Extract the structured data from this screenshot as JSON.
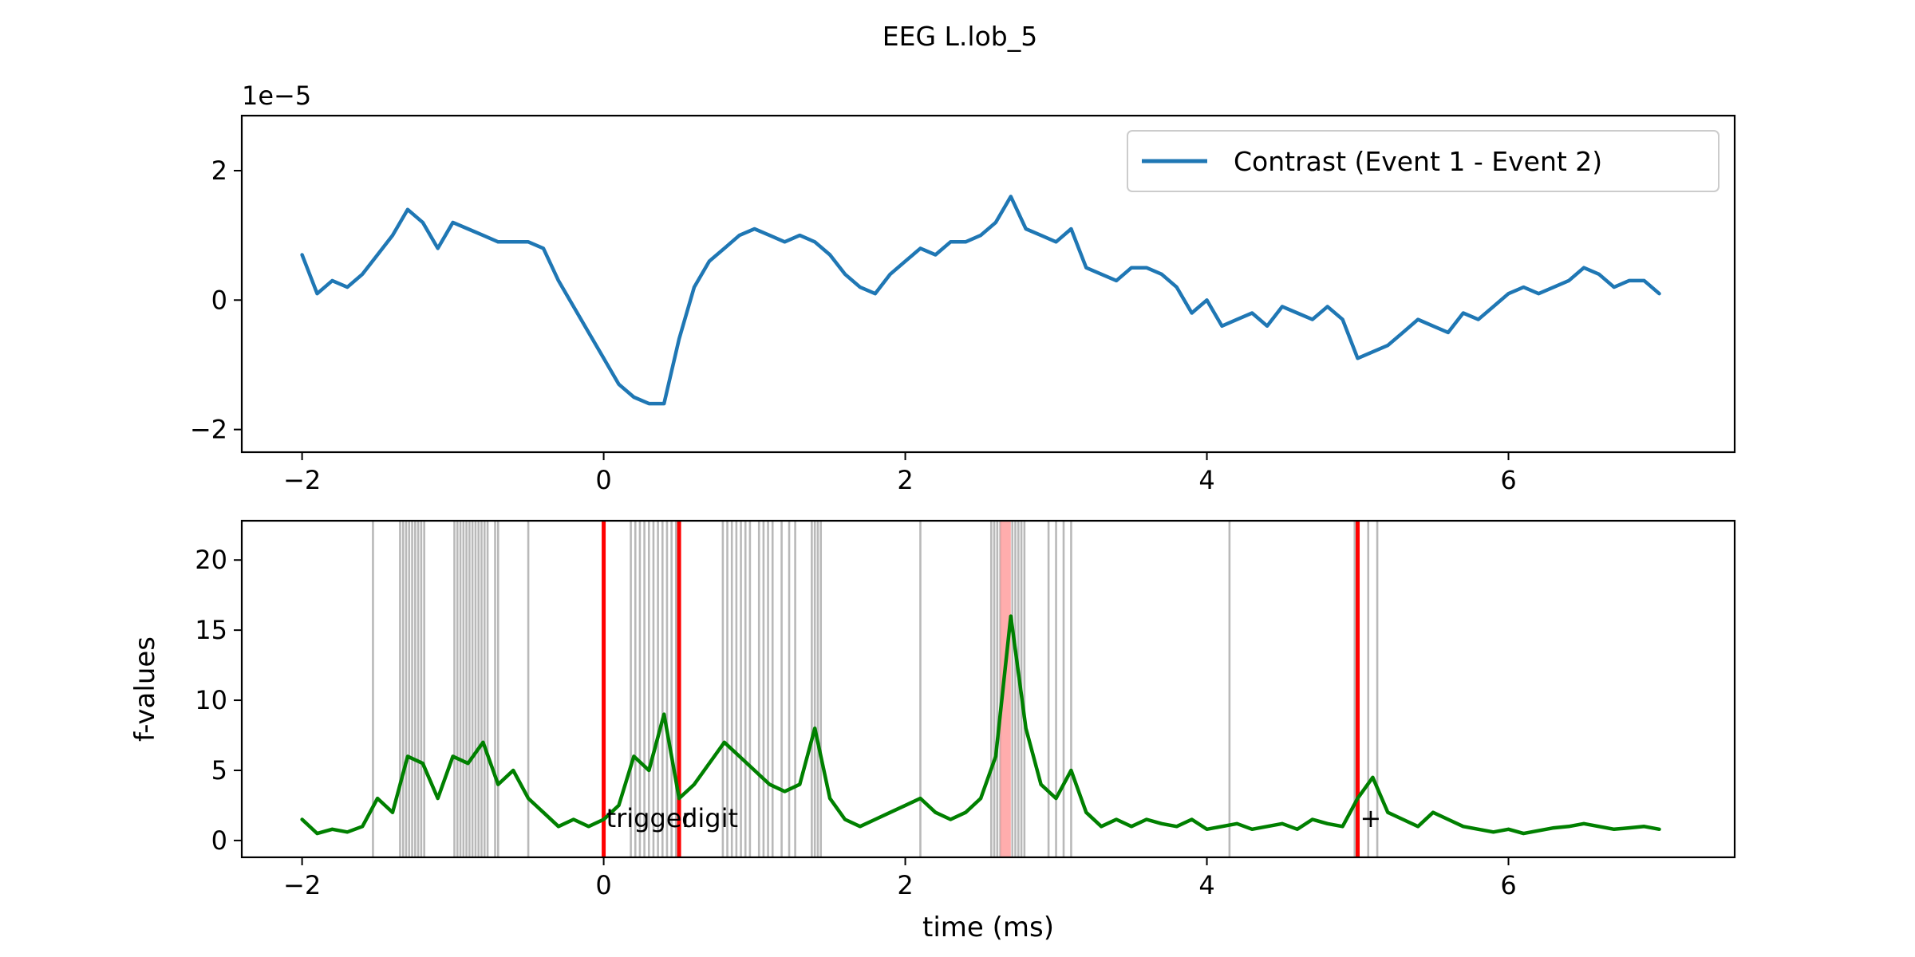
{
  "figure": {
    "title": "EEG L.lob_5"
  },
  "chart_data": [
    {
      "type": "line",
      "title": "",
      "xlabel": "",
      "ylabel": "",
      "y_offset_text": "1e−5",
      "xlim": [
        -2.4,
        7.5
      ],
      "ylim": [
        -2.35,
        2.85
      ],
      "x_ticks": [
        -2,
        0,
        2,
        4,
        6
      ],
      "x_tick_labels": [
        "−2",
        "0",
        "2",
        "4",
        "6"
      ],
      "y_ticks": [
        -2,
        0,
        2
      ],
      "y_tick_labels": [
        "−2",
        "0",
        "2"
      ],
      "grid": false,
      "legend": "upper right",
      "series": [
        {
          "name": "Contrast (Event 1 - Event 2)",
          "color": "#1f77b4",
          "x": [
            -2.0,
            -1.9,
            -1.8,
            -1.7,
            -1.6,
            -1.5,
            -1.4,
            -1.3,
            -1.2,
            -1.1,
            -1.0,
            -0.9,
            -0.8,
            -0.7,
            -0.6,
            -0.5,
            -0.4,
            -0.3,
            -0.2,
            -0.1,
            0.0,
            0.1,
            0.2,
            0.3,
            0.4,
            0.5,
            0.6,
            0.7,
            0.8,
            0.9,
            1.0,
            1.1,
            1.2,
            1.3,
            1.4,
            1.5,
            1.6,
            1.7,
            1.8,
            1.9,
            2.0,
            2.1,
            2.2,
            2.3,
            2.4,
            2.5,
            2.6,
            2.7,
            2.8,
            2.9,
            3.0,
            3.1,
            3.2,
            3.3,
            3.4,
            3.5,
            3.6,
            3.7,
            3.8,
            3.9,
            4.0,
            4.1,
            4.2,
            4.3,
            4.4,
            4.5,
            4.6,
            4.7,
            4.8,
            4.9,
            5.0,
            5.1,
            5.2,
            5.3,
            5.4,
            5.5,
            5.6,
            5.7,
            5.8,
            5.9,
            6.0,
            6.1,
            6.2,
            6.3,
            6.4,
            6.5,
            6.6,
            6.7,
            6.8,
            6.9,
            7.0
          ],
          "y": [
            0.7,
            0.1,
            0.3,
            0.2,
            0.4,
            0.7,
            1.0,
            1.4,
            1.2,
            0.8,
            1.2,
            1.1,
            1.0,
            0.9,
            0.9,
            0.9,
            0.8,
            0.3,
            -0.1,
            -0.5,
            -0.9,
            -1.3,
            -1.5,
            -1.6,
            -1.6,
            -0.6,
            0.2,
            0.6,
            0.8,
            1.0,
            1.1,
            1.0,
            0.9,
            1.0,
            0.9,
            0.7,
            0.4,
            0.2,
            0.1,
            0.4,
            0.6,
            0.8,
            0.7,
            0.9,
            0.9,
            1.0,
            1.2,
            1.6,
            1.1,
            1.0,
            0.9,
            1.1,
            0.5,
            0.4,
            0.3,
            0.5,
            0.5,
            0.4,
            0.2,
            -0.2,
            0.0,
            -0.4,
            -0.3,
            -0.2,
            -0.4,
            -0.1,
            -0.2,
            -0.3,
            -0.1,
            -0.3,
            -0.9,
            -0.8,
            -0.7,
            -0.5,
            -0.3,
            -0.4,
            -0.5,
            -0.2,
            -0.3,
            -0.1,
            0.1,
            0.2,
            0.1,
            0.2,
            0.3,
            0.5,
            0.4,
            0.2,
            0.3,
            0.3,
            0.1
          ]
        }
      ]
    },
    {
      "type": "line",
      "title": "",
      "xlabel": "time (ms)",
      "ylabel": "f-values",
      "xlim": [
        -2.4,
        7.5
      ],
      "ylim": [
        -1.2,
        22.8
      ],
      "x_ticks": [
        -2,
        0,
        2,
        4,
        6
      ],
      "x_tick_labels": [
        "−2",
        "0",
        "2",
        "4",
        "6"
      ],
      "y_ticks": [
        0,
        5,
        10,
        15,
        20
      ],
      "y_tick_labels": [
        "0",
        "5",
        "10",
        "15",
        "20"
      ],
      "grid": false,
      "series": [
        {
          "color": "#008000",
          "x": [
            -2.0,
            -1.9,
            -1.8,
            -1.7,
            -1.6,
            -1.5,
            -1.4,
            -1.3,
            -1.2,
            -1.1,
            -1.0,
            -0.9,
            -0.8,
            -0.7,
            -0.6,
            -0.5,
            -0.4,
            -0.3,
            -0.2,
            -0.1,
            0.0,
            0.1,
            0.2,
            0.3,
            0.4,
            0.5,
            0.6,
            0.7,
            0.8,
            0.9,
            1.0,
            1.1,
            1.2,
            1.3,
            1.4,
            1.5,
            1.6,
            1.7,
            1.8,
            1.9,
            2.0,
            2.1,
            2.2,
            2.3,
            2.4,
            2.5,
            2.6,
            2.7,
            2.8,
            2.9,
            3.0,
            3.1,
            3.2,
            3.3,
            3.4,
            3.5,
            3.6,
            3.7,
            3.8,
            3.9,
            4.0,
            4.1,
            4.2,
            4.3,
            4.4,
            4.5,
            4.6,
            4.7,
            4.8,
            4.9,
            5.0,
            5.1,
            5.2,
            5.3,
            5.4,
            5.5,
            5.6,
            5.7,
            5.8,
            5.9,
            6.0,
            6.1,
            6.2,
            6.3,
            6.4,
            6.5,
            6.6,
            6.7,
            6.8,
            6.9,
            7.0
          ],
          "y": [
            1.5,
            0.5,
            0.8,
            0.6,
            1.0,
            3.0,
            2.0,
            6.0,
            5.5,
            3.0,
            6.0,
            5.5,
            7.0,
            4.0,
            5.0,
            3.0,
            2.0,
            1.0,
            1.5,
            1.0,
            1.5,
            2.5,
            6.0,
            5.0,
            9.0,
            3.0,
            4.0,
            5.5,
            7.0,
            6.0,
            5.0,
            4.0,
            3.5,
            4.0,
            8.0,
            3.0,
            1.5,
            1.0,
            1.5,
            2.0,
            2.5,
            3.0,
            2.0,
            1.5,
            2.0,
            3.0,
            6.0,
            16.0,
            8.0,
            4.0,
            3.0,
            5.0,
            2.0,
            1.0,
            1.5,
            1.0,
            1.5,
            1.2,
            1.0,
            1.5,
            0.8,
            1.0,
            1.2,
            0.8,
            1.0,
            1.2,
            0.8,
            1.5,
            1.2,
            1.0,
            3.0,
            4.5,
            2.0,
            1.5,
            1.0,
            2.0,
            1.5,
            1.0,
            0.8,
            0.6,
            0.8,
            0.5,
            0.7,
            0.9,
            1.0,
            1.2,
            1.0,
            0.8,
            0.9,
            1.0,
            0.8
          ]
        }
      ],
      "event_lines": {
        "color": "#ff0000",
        "x": [
          0.0,
          0.5,
          5.0
        ]
      },
      "event_labels": [
        {
          "x": 0.0,
          "y": 1.6,
          "text": "trigger"
        },
        {
          "x": 0.5,
          "y": 1.6,
          "text": "digit"
        },
        {
          "x": 5.0,
          "y": 1.6,
          "text": "+"
        }
      ],
      "significant_times": {
        "color": "#808080",
        "x": [
          -1.53,
          -1.35,
          -1.33,
          -1.31,
          -1.29,
          -1.27,
          -1.25,
          -1.23,
          -1.21,
          -1.19,
          -0.99,
          -0.97,
          -0.95,
          -0.93,
          -0.91,
          -0.89,
          -0.87,
          -0.85,
          -0.83,
          -0.81,
          -0.79,
          -0.77,
          -0.72,
          -0.7,
          -0.5,
          0.18,
          0.21,
          0.24,
          0.27,
          0.3,
          0.33,
          0.36,
          0.39,
          0.42,
          0.45,
          0.48,
          0.79,
          0.82,
          0.85,
          0.88,
          0.91,
          0.94,
          0.97,
          1.03,
          1.06,
          1.09,
          1.12,
          1.18,
          1.23,
          1.27,
          1.38,
          1.4,
          1.42,
          1.44,
          2.1,
          2.57,
          2.59,
          2.61,
          2.63,
          2.71,
          2.73,
          2.75,
          2.77,
          2.79,
          2.95,
          3.0,
          3.05,
          3.1,
          4.15,
          4.98,
          5.07,
          5.13
        ]
      },
      "highlight_span": {
        "color": "#ff9999",
        "x": [
          2.63,
          2.7
        ]
      }
    }
  ]
}
